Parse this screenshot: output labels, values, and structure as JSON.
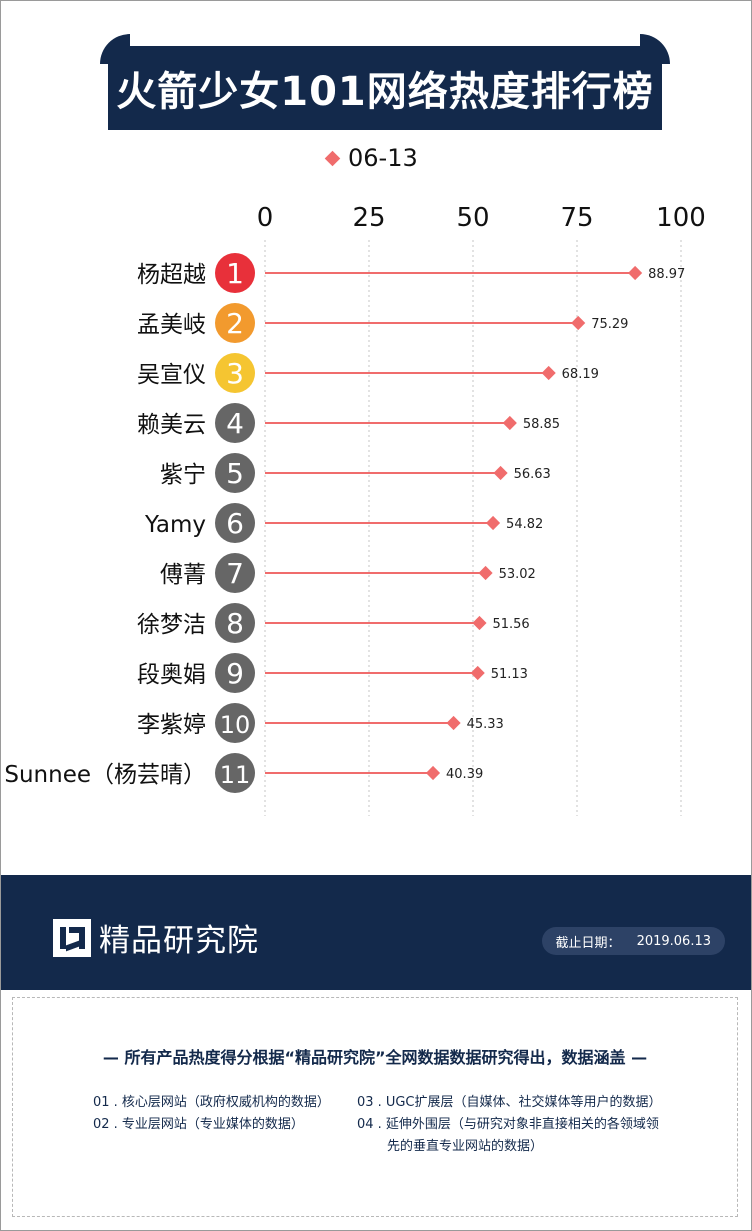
{
  "title": "火箭少女101网络热度排行榜",
  "legend": {
    "label": "06-13",
    "color": "#f06c6c"
  },
  "chart_data": {
    "type": "lollipop-bar",
    "title": "火箭少女101网络热度排行榜",
    "x_ticks": [
      0,
      25,
      50,
      75,
      100
    ],
    "xlim": [
      0,
      100
    ],
    "grid": true,
    "legend_position": "top",
    "series": [
      {
        "name": "06-13",
        "color": "#f06c6c",
        "items": [
          {
            "rank": "1",
            "name": "杨超越",
            "value": 88.97,
            "label": "88.97",
            "badge_color": "#e8303a"
          },
          {
            "rank": "2",
            "name": "孟美岐",
            "value": 75.29,
            "label": "75.29",
            "badge_color": "#f29a2e"
          },
          {
            "rank": "3",
            "name": "吴宣仪",
            "value": 68.19,
            "label": "68.19",
            "badge_color": "#f5c531"
          },
          {
            "rank": "4",
            "name": "赖美云",
            "value": 58.85,
            "label": "58.85",
            "badge_color": "#666666"
          },
          {
            "rank": "5",
            "name": "紫宁",
            "value": 56.63,
            "label": "56.63",
            "badge_color": "#666666"
          },
          {
            "rank": "6",
            "name": "Yamy",
            "value": 54.82,
            "label": "54.82",
            "badge_color": "#666666"
          },
          {
            "rank": "7",
            "name": "傅菁",
            "value": 53.02,
            "label": "53.02",
            "badge_color": "#666666"
          },
          {
            "rank": "8",
            "name": "徐梦洁",
            "value": 51.56,
            "label": "51.56",
            "badge_color": "#666666"
          },
          {
            "rank": "9",
            "name": "段奥娟",
            "value": 51.13,
            "label": "51.13",
            "badge_color": "#666666"
          },
          {
            "rank": "10",
            "name": "李紫婷",
            "value": 45.33,
            "label": "45.33",
            "badge_color": "#666666"
          },
          {
            "rank": "11",
            "name": "Sunnee（杨芸晴）",
            "value": 40.39,
            "label": "40.39",
            "badge_color": "#666666"
          }
        ]
      }
    ]
  },
  "footer": {
    "brand": "精品研究院",
    "date_label": "截止日期：",
    "date_value": "2019.06.13",
    "notes_heading": "— 所有产品热度得分根据“精品研究院”全网数据数据研究得出，数据涵盖 —",
    "notes": [
      {
        "num": "01 .",
        "text": "核心层网站（政府权威机构的数据）"
      },
      {
        "num": "02 .",
        "text": "专业层网站（专业媒体的数据）"
      },
      {
        "num": "03 .",
        "text": "UGC扩展层（自媒体、社交媒体等用户的数据）"
      },
      {
        "num": "04 .",
        "text": "延伸外围层（与研究对象非直接相关的各领域领"
      },
      {
        "num": "",
        "text": "先的垂直专业网站的数据）"
      }
    ]
  },
  "colors": {
    "navy": "#13294b",
    "accent": "#f06c6c"
  }
}
